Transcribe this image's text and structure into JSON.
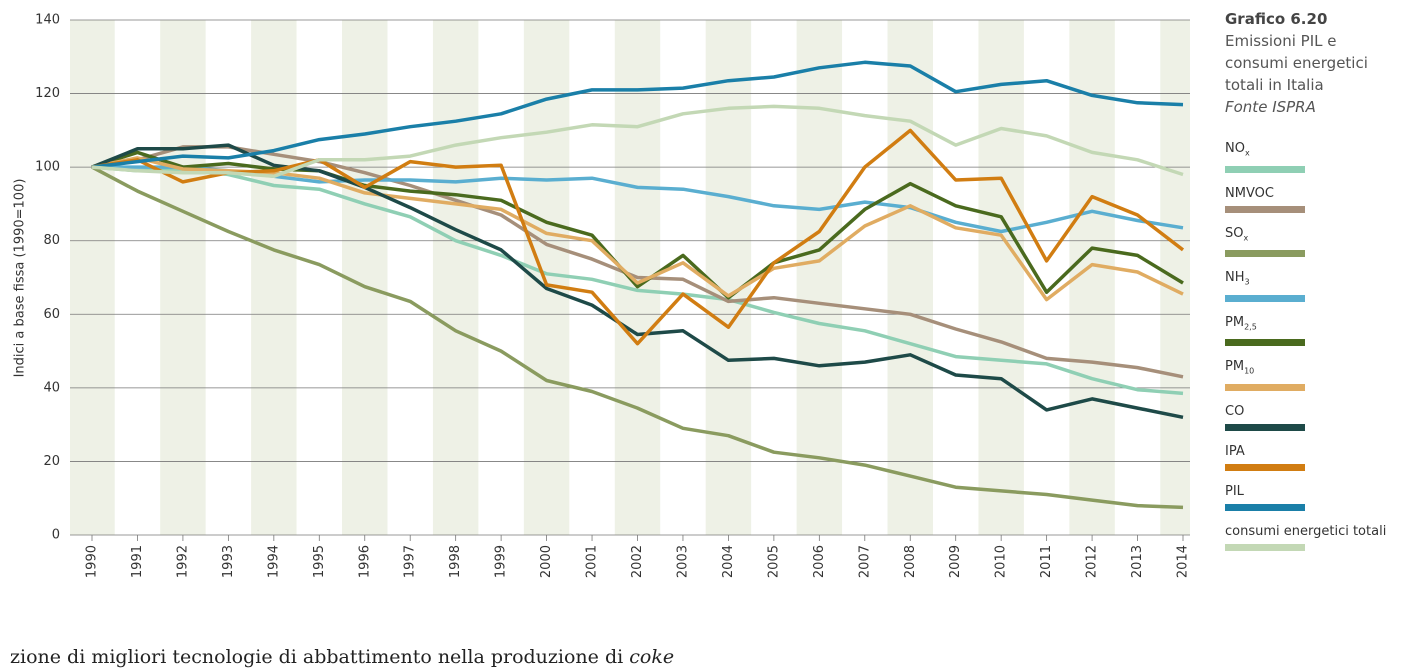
{
  "chart_data": {
    "type": "line",
    "title": "Grafico 6.20",
    "subtitle": "Emissioni PIL e consumi energetici totali in Italia",
    "source": "Fonte ISPRA",
    "y_label": "Indici a base fissa (1990=100)",
    "categories": [
      "1990",
      "1991",
      "1992",
      "1993",
      "1994",
      "1995",
      "1996",
      "1997",
      "1998",
      "1999",
      "2000",
      "2001",
      "2002",
      "2003",
      "2004",
      "2005",
      "2006",
      "2007",
      "2008",
      "2009",
      "2010",
      "2011",
      "2012",
      "2013",
      "2014"
    ],
    "ylim": [
      0,
      140
    ],
    "yticks": [
      0,
      20,
      40,
      60,
      80,
      100,
      120,
      140
    ],
    "grid": true,
    "legend": "right",
    "series": [
      {
        "name": "NO",
        "subscript": "x",
        "color": "#8fcfb4",
        "values": [
          100,
          99,
          99.5,
          98,
          95,
          94,
          90,
          86.5,
          80,
          76,
          71,
          69.5,
          66.5,
          65.5,
          64,
          60.5,
          57.5,
          55.5,
          52,
          48.5,
          47.5,
          46.5,
          42.5,
          39.5,
          38.5
        ]
      },
      {
        "name": "NMVOC",
        "color": "#a68f7a",
        "values": [
          100,
          102,
          105.5,
          105.5,
          103.5,
          101.5,
          98.5,
          95,
          91,
          87,
          79,
          75,
          70,
          69.5,
          63.5,
          64.5,
          63,
          61.5,
          60,
          56,
          52.5,
          48,
          47,
          45.5,
          43
        ]
      },
      {
        "name": "SO",
        "subscript": "x",
        "color": "#8a9b5f",
        "values": [
          100,
          93.5,
          88,
          82.5,
          77.5,
          73.5,
          67.5,
          63.5,
          55.5,
          50,
          42,
          39,
          34.5,
          29,
          27,
          22.5,
          21,
          19,
          16,
          13,
          12,
          11,
          9.5,
          8,
          7.5
        ]
      },
      {
        "name": "NH",
        "subscript": "3",
        "color": "#5aaed0",
        "values": [
          100,
          100,
          100,
          99,
          97.5,
          96,
          96.5,
          96.5,
          96,
          97,
          96.5,
          97,
          94.5,
          94,
          92,
          89.5,
          88.5,
          90.5,
          89,
          85,
          82.5,
          85,
          88,
          85.5,
          83.5
        ]
      },
      {
        "name": "PM",
        "subscript": "2,5",
        "color": "#4a6a1e",
        "values": [
          100,
          104,
          100,
          101,
          99.5,
          99,
          95,
          93.5,
          92.5,
          91,
          85,
          81.5,
          67.5,
          76,
          64.5,
          74,
          77.5,
          88.5,
          95.5,
          89.5,
          86.5,
          66,
          78,
          76,
          68.5
        ]
      },
      {
        "name": "PM",
        "subscript": "10",
        "color": "#e0ac62",
        "values": [
          100,
          102.5,
          99.5,
          99,
          98.5,
          97,
          93,
          91.5,
          90,
          88.5,
          82,
          80,
          68.5,
          74,
          65,
          72.5,
          74.5,
          84,
          89.5,
          83.5,
          81.5,
          64,
          73.5,
          71.5,
          65.5
        ]
      },
      {
        "name": "CO",
        "color": "#1e4a48",
        "values": [
          100,
          105,
          105,
          106,
          100.5,
          99,
          94.5,
          89,
          83,
          77.5,
          67,
          62.5,
          54.5,
          55.5,
          47.5,
          48,
          46,
          47,
          49,
          43.5,
          42.5,
          34,
          37,
          34.5,
          32
        ]
      },
      {
        "name": "IPA",
        "color": "#d17d12",
        "values": [
          100,
          102,
          96,
          98.5,
          99,
          102,
          94.5,
          101.5,
          100,
          100.5,
          68,
          66,
          52,
          65.5,
          56.5,
          74,
          82.5,
          100,
          110,
          96.5,
          97,
          74.5,
          92,
          87,
          77.5
        ]
      },
      {
        "name": "PIL",
        "color": "#1a7fa8",
        "values": [
          100,
          101.5,
          103,
          102.5,
          104.5,
          107.5,
          109,
          111,
          112.5,
          114.5,
          118.5,
          121,
          121,
          121.5,
          123.5,
          124.5,
          127,
          128.5,
          127.5,
          120.5,
          122.5,
          123.5,
          119.5,
          117.5,
          117
        ]
      },
      {
        "name": "consumi energetici totali",
        "color": "#c3d8b5",
        "values": [
          100,
          99,
          98.5,
          98.5,
          97.5,
          102,
          102,
          103,
          106,
          108,
          109.5,
          111.5,
          111,
          114.5,
          116,
          116.5,
          116,
          114,
          112.5,
          106,
          110.5,
          108.5,
          104,
          102,
          98
        ]
      }
    ]
  },
  "footnote": {
    "text": "zione di migliori tecnologie di abbattimento nella produzione di ",
    "emphasis": "coke"
  }
}
